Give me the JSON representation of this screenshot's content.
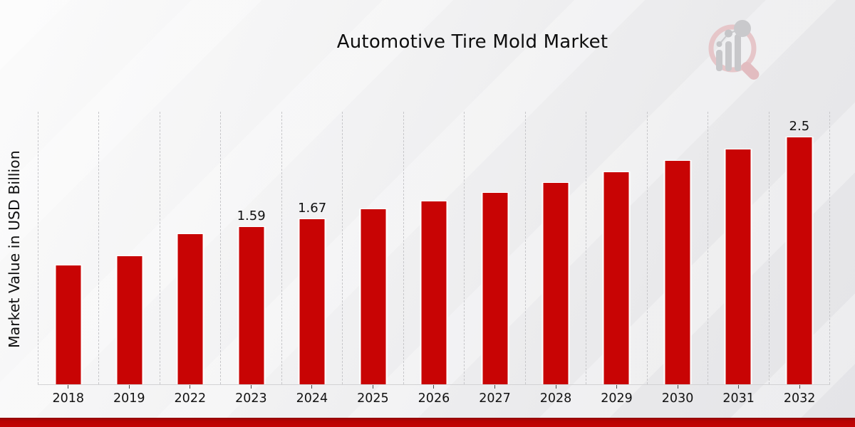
{
  "header": {
    "logo_icon": "magnifier-bar-chart-logo"
  },
  "chart_data": {
    "type": "bar",
    "title": "Automotive Tire Mold Market",
    "xlabel": "",
    "ylabel": "Market Value in USD Billion",
    "categories": [
      "2018",
      "2019",
      "2022",
      "2023",
      "2024",
      "2025",
      "2026",
      "2027",
      "2028",
      "2029",
      "2030",
      "2031",
      "2032"
    ],
    "values": [
      1.2,
      1.3,
      1.52,
      1.59,
      1.67,
      1.77,
      1.85,
      1.94,
      2.04,
      2.15,
      2.26,
      2.38,
      2.5
    ],
    "value_labels": [
      "",
      "",
      "",
      "1.59",
      "1.67",
      "",
      "",
      "",
      "",
      "",
      "",
      "",
      "2.5"
    ],
    "ylim": [
      0,
      2.76
    ],
    "grid": "vertical-dashed",
    "legend": "none",
    "bar_color": "#c80404",
    "grid_color": "#c7c7ca",
    "axis_color": "#d2d2d4",
    "text_color": "#101010",
    "accent_band_color": "#c40404"
  }
}
